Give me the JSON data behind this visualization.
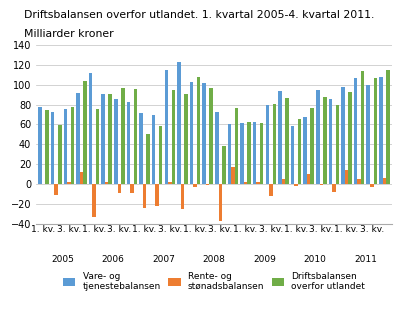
{
  "title_line1": "Driftsbalansen overfor utlandet. 1. kvartal 2005-4. kvartal 2011.",
  "title_line2": "Milliarder kroner",
  "year_labels": [
    "2005",
    "2006",
    "2007",
    "2008",
    "2009",
    "2010",
    "2011"
  ],
  "vare_og_tjeneste": [
    78,
    73,
    76,
    92,
    112,
    91,
    86,
    83,
    71,
    69,
    115,
    123,
    103,
    102,
    72,
    60,
    61,
    62,
    80,
    94,
    58,
    67,
    95,
    86,
    98,
    107,
    100,
    108
  ],
  "rente_og_stonads": [
    0,
    -11,
    2,
    12,
    -33,
    2,
    -9,
    -9,
    -24,
    -22,
    2,
    -25,
    -3,
    -1,
    -37,
    17,
    2,
    2,
    -12,
    5,
    -2,
    10,
    -1,
    -8,
    14,
    5,
    -3,
    6
  ],
  "driftsbalansen": [
    75,
    59,
    78,
    104,
    76,
    91,
    97,
    96,
    50,
    58,
    95,
    91,
    108,
    97,
    38,
    77,
    62,
    61,
    81,
    87,
    65,
    77,
    88,
    80,
    93,
    114,
    107,
    115
  ],
  "bar_color_vare": "#5b9bd5",
  "bar_color_rente": "#ed7d31",
  "bar_color_drifts": "#70ad47",
  "ylim": [
    -40,
    140
  ],
  "yticks": [
    -40,
    -20,
    0,
    20,
    40,
    60,
    80,
    100,
    120,
    140
  ],
  "legend_labels": [
    "Vare- og\ntjenestebalansen",
    "Rente- og\nstønadsbalansen",
    "Driftsbalansen\noverfor utlandet"
  ],
  "bg_color": "#ffffff",
  "grid_color": "#c0c0c0"
}
